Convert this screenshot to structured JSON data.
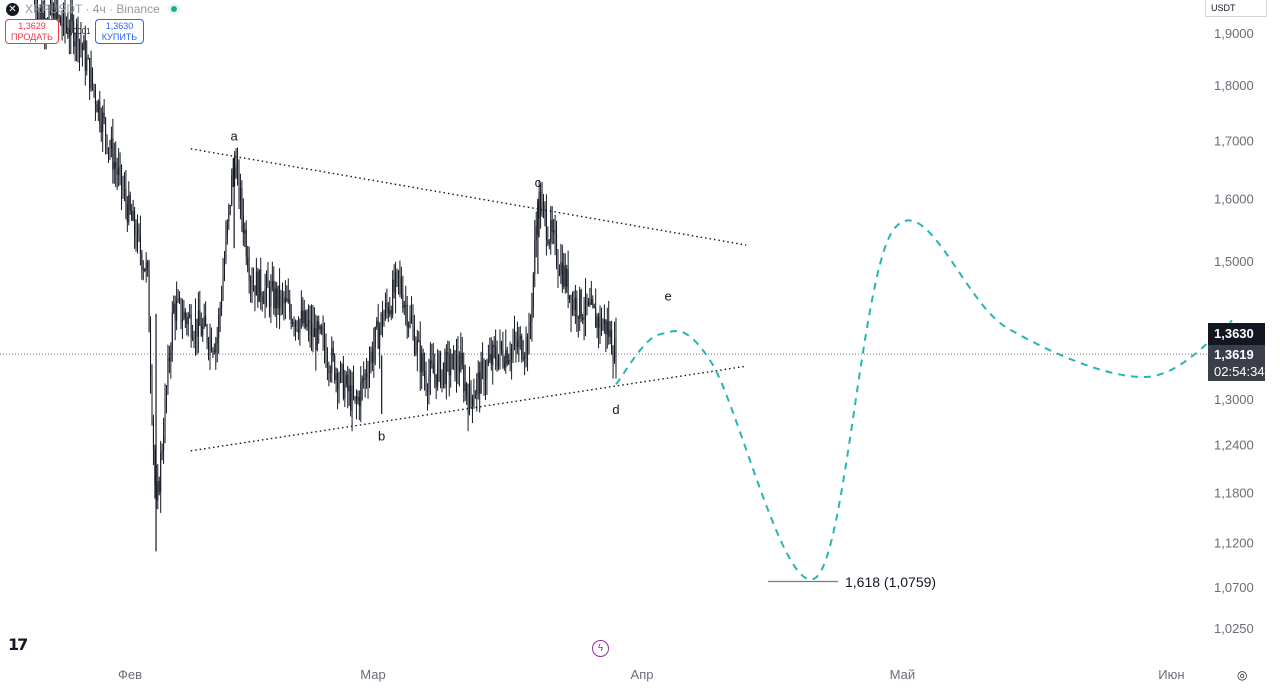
{
  "header": {
    "symbol": "XRPUSDT · 4ч · Binance",
    "sell_price": "1,3629",
    "sell_label": "ПРОДАТЬ",
    "spread": "0,0001",
    "buy_price": "1,3630",
    "buy_label": "КУПИТЬ"
  },
  "currency": "USDT",
  "price_badges": {
    "last": "1,3630",
    "current": "1,3619",
    "countdown": "02:54:34"
  },
  "colors": {
    "candle": "#131722",
    "projection": "#26b5b5",
    "triangle": "#131722",
    "sell": "#f23645",
    "buy": "#2962ff"
  },
  "icons": [
    "close-icon",
    "live-dot-icon",
    "tradingview-logo-icon",
    "lightning-icon",
    "settings-icon"
  ],
  "chart_data": {
    "type": "line",
    "scale": "log",
    "y_ticks": [
      "1,9000",
      "1,8000",
      "1,7000",
      "1,6000",
      "1,5000",
      "1,3000",
      "1,2400",
      "1,1800",
      "1,1200",
      "1,0700",
      "1,0250"
    ],
    "x_ticks": [
      "Фев",
      "Мар",
      "Апр",
      "Май",
      "Июн"
    ],
    "price_series": {
      "x": [
        "2025-01-20",
        "2025-01-25",
        "2025-01-30",
        "2025-02-02",
        "2025-02-03",
        "2025-02-05",
        "2025-02-10",
        "2025-02-12",
        "2025-02-14",
        "2025-02-18",
        "2025-02-22",
        "2025-02-26",
        "2025-03-01",
        "2025-03-03",
        "2025-03-06",
        "2025-03-10",
        "2025-03-11",
        "2025-03-14",
        "2025-03-18",
        "2025-03-19",
        "2025-03-23",
        "2025-03-27",
        "2025-03-28"
      ],
      "y": [
        1.95,
        1.9,
        1.62,
        1.48,
        1.15,
        1.43,
        1.38,
        1.67,
        1.47,
        1.43,
        1.38,
        1.29,
        1.41,
        1.47,
        1.33,
        1.35,
        1.3,
        1.36,
        1.38,
        1.6,
        1.44,
        1.4,
        1.36
      ]
    },
    "projection": {
      "x": [
        "2025-03-28",
        "2025-04-02",
        "2025-04-08",
        "2025-04-20",
        "2025-04-29",
        "2025-05-12",
        "2025-05-28",
        "2025-06-07"
      ],
      "y": [
        1.32,
        1.39,
        1.35,
        1.08,
        1.55,
        1.4,
        1.33,
        1.41
      ]
    },
    "triangle_upper": {
      "x": [
        "2025-02-07",
        "2025-04-12"
      ],
      "y": [
        1.685,
        1.525
      ]
    },
    "triangle_lower": {
      "x": [
        "2025-02-07",
        "2025-04-12"
      ],
      "y": [
        1.232,
        1.345
      ]
    },
    "wave_labels": [
      {
        "text": "a",
        "x": "2025-02-12",
        "y": 1.7
      },
      {
        "text": "b",
        "x": "2025-03-01",
        "y": 1.245
      },
      {
        "text": "c",
        "x": "2025-03-19",
        "y": 1.62
      },
      {
        "text": "d",
        "x": "2025-03-28",
        "y": 1.28
      },
      {
        "text": "e",
        "x": "2025-04-03",
        "y": 1.44
      }
    ],
    "fib_level": {
      "ratio": "1,618",
      "price": "1,0759",
      "label": "1,618 (1,0759)"
    },
    "current_price": 1.3619
  }
}
